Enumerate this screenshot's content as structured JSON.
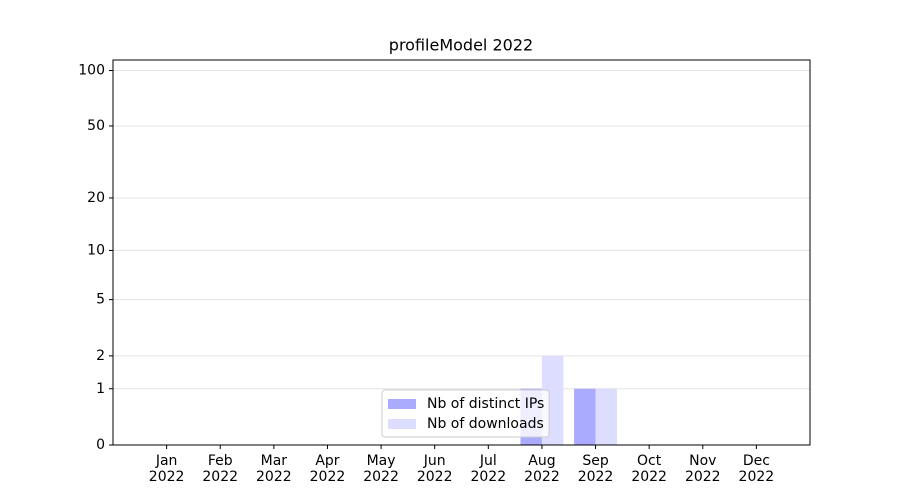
{
  "chart_data": {
    "type": "bar",
    "title": "profileModel 2022",
    "categories": [
      "Jan\n2022",
      "Feb\n2022",
      "Mar\n2022",
      "Apr\n2022",
      "May\n2022",
      "Jun\n2022",
      "Jul\n2022",
      "Aug\n2022",
      "Sep\n2022",
      "Oct\n2022",
      "Nov\n2022",
      "Dec\n2022"
    ],
    "series": [
      {
        "name": "Nb of distinct IPs",
        "color": "#aaaaff",
        "values": [
          0,
          0,
          0,
          0,
          0,
          0,
          0,
          1,
          1,
          0,
          0,
          0
        ]
      },
      {
        "name": "Nb of downloads",
        "color": "#ddddff",
        "values": [
          0,
          0,
          0,
          0,
          0,
          0,
          0,
          2,
          1,
          0,
          0,
          0
        ]
      }
    ],
    "y_scale": "log1p",
    "ylim": [
      0,
      114
    ],
    "yticks": [
      0,
      1,
      2,
      5,
      10,
      20,
      50,
      100
    ],
    "grid": true,
    "legend": "lower center"
  }
}
